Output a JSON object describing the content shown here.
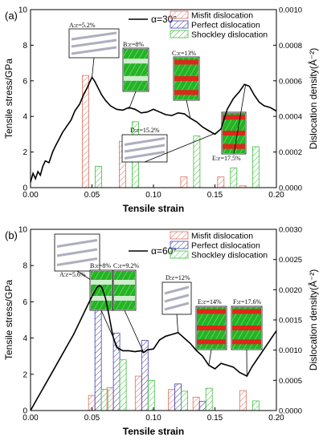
{
  "chart_data": [
    {
      "panel_label": "(a)",
      "type": "bar+line",
      "xlabel": "Tensile strain",
      "ylabel_left": "Tensile stress/GPa",
      "ylabel_right": "Dislocation density(Å⁻²)",
      "xlim": [
        0.0,
        0.2
      ],
      "ylim_left": [
        0,
        10
      ],
      "ylim_right": [
        0,
        0.001
      ],
      "x_ticks": [
        "0.00",
        "0.05",
        "0.10",
        "0.15",
        "0.20"
      ],
      "y_left_ticks": [
        "0",
        "2",
        "4",
        "6",
        "8",
        "10"
      ],
      "y_right_ticks": [
        "0.0000",
        "0.0002",
        "0.0004",
        "0.0006",
        "0.0008",
        "0.0010"
      ],
      "line_label": "α=30°",
      "stress_curve": {
        "x": [
          0,
          0.002,
          0.004,
          0.006,
          0.008,
          0.01,
          0.012,
          0.015,
          0.018,
          0.02,
          0.023,
          0.026,
          0.03,
          0.033,
          0.036,
          0.04,
          0.043,
          0.046,
          0.048,
          0.05,
          0.052,
          0.055,
          0.058,
          0.061,
          0.065,
          0.07,
          0.075,
          0.08,
          0.085,
          0.09,
          0.095,
          0.1,
          0.105,
          0.11,
          0.115,
          0.12,
          0.125,
          0.13,
          0.135,
          0.14,
          0.145,
          0.15,
          0.155,
          0.16,
          0.165,
          0.17,
          0.174,
          0.178,
          0.182,
          0.186,
          0.19,
          0.195,
          0.2
        ],
        "y": [
          0.3,
          0.8,
          0.5,
          0.9,
          0.7,
          1.2,
          1.5,
          1.4,
          2.0,
          2.3,
          2.7,
          3.1,
          3.5,
          3.8,
          4.3,
          4.7,
          5.2,
          5.6,
          5.9,
          6.2,
          6.0,
          5.6,
          5.2,
          4.9,
          4.6,
          4.4,
          4.35,
          4.5,
          4.4,
          4.2,
          4.25,
          4.4,
          4.25,
          4.1,
          4.05,
          4.2,
          4.15,
          3.9,
          3.7,
          3.4,
          3.2,
          3.0,
          3.3,
          4.4,
          5.0,
          5.4,
          5.8,
          5.7,
          5.2,
          4.8,
          4.6,
          4.5,
          4.3
        ]
      },
      "bar_groups": [
        {
          "x": 0.05,
          "values": [
            0.00063,
            0.0,
            0.00012
          ]
        },
        {
          "x": 0.08,
          "values": [
            0.00026,
            0.0,
            0.00037
          ]
        },
        {
          "x": 0.13,
          "values": [
            6e-05,
            0.0,
            0.00029
          ]
        },
        {
          "x": 0.16,
          "values": [
            6e-05,
            0.0,
            0.00011
          ]
        },
        {
          "x": 0.178,
          "values": [
            1e-05,
            0.0,
            0.00023
          ]
        }
      ],
      "legend": {
        "placement": "top-right",
        "entries": [
          "Misfit dislocation",
          "Perfect dislocation",
          "Shockley dislocation"
        ]
      },
      "annotations": [
        {
          "text": "A:ε=5.2%",
          "x": 0.05,
          "y": 6.2
        },
        {
          "text": "B:ε=8%",
          "x": 0.08,
          "y": 4.4
        },
        {
          "text": "C:ε=13%",
          "x": 0.13,
          "y": 3.9
        },
        {
          "text": "D:ε=15.2%",
          "x": 0.152,
          "y": 3.1
        },
        {
          "text": "E:ε=17.5%",
          "x": 0.175,
          "y": 5.8
        }
      ]
    },
    {
      "panel_label": "(b)",
      "type": "bar+line",
      "xlabel": "Tensile strain",
      "ylabel_left": "Tensile stress/GPa",
      "ylabel_right": "Dislocation density(Å⁻²)",
      "xlim": [
        0.0,
        0.2
      ],
      "ylim_left": [
        0,
        10
      ],
      "ylim_right": [
        0,
        0.003
      ],
      "x_ticks": [
        "0.00",
        "0.05",
        "0.10",
        "0.15",
        "0.20"
      ],
      "y_left_ticks": [
        "0",
        "2",
        "4",
        "6",
        "8",
        "10"
      ],
      "y_right_ticks": [
        "0.0000",
        "0.0005",
        "0.0010",
        "0.0015",
        "0.0020",
        "0.0025",
        "0.0030"
      ],
      "line_label": "α=60°",
      "stress_curve": {
        "x": [
          0,
          0.005,
          0.01,
          0.015,
          0.02,
          0.025,
          0.03,
          0.035,
          0.04,
          0.045,
          0.05,
          0.054,
          0.056,
          0.058,
          0.061,
          0.064,
          0.067,
          0.07,
          0.075,
          0.08,
          0.085,
          0.09,
          0.092,
          0.095,
          0.1,
          0.105,
          0.11,
          0.115,
          0.12,
          0.125,
          0.13,
          0.135,
          0.14,
          0.145,
          0.15,
          0.155,
          0.16,
          0.165,
          0.17,
          0.176,
          0.18,
          0.185,
          0.19,
          0.195,
          0.2
        ],
        "y": [
          0.0,
          0.6,
          1.2,
          1.8,
          2.4,
          3.0,
          3.6,
          4.2,
          4.9,
          5.6,
          6.3,
          6.8,
          6.9,
          6.8,
          6.2,
          5.2,
          4.1,
          3.5,
          3.3,
          3.3,
          3.25,
          3.3,
          3.2,
          3.35,
          3.4,
          3.9,
          4.1,
          4.2,
          4.3,
          4.0,
          3.7,
          3.3,
          3.0,
          2.5,
          2.3,
          2.6,
          2.5,
          2.4,
          2.1,
          1.9,
          2.4,
          2.9,
          3.4,
          3.9,
          4.4
        ]
      },
      "bar_groups": [
        {
          "x": 0.055,
          "values": [
            0.00025,
            0.0021,
            0.00035
          ]
        },
        {
          "x": 0.07,
          "values": [
            0.00038,
            0.00128,
            0.00084
          ]
        },
        {
          "x": 0.093,
          "values": [
            0.00057,
            0.00116,
            0.0005
          ]
        },
        {
          "x": 0.12,
          "values": [
            0.00035,
            0.00044,
            0.00032
          ]
        },
        {
          "x": 0.14,
          "values": [
            0.00022,
            0.00015,
            0.00037
          ]
        },
        {
          "x": 0.178,
          "values": [
            0.00033,
            0.0,
            0.00016
          ]
        }
      ],
      "legend": {
        "placement": "top-right",
        "entries": [
          "Misfit dislocation",
          "Perfect dislocation",
          "Shockley dislocation"
        ]
      },
      "annotations": [
        {
          "text": "A:ε=5.6%",
          "x": 0.056,
          "y": 6.9
        },
        {
          "text": "B:ε=8%",
          "x": 0.072,
          "y": 3.3
        },
        {
          "text": "C:ε=9.2%",
          "x": 0.092,
          "y": 3.2
        },
        {
          "text": "D:ε=12%",
          "x": 0.12,
          "y": 4.3
        },
        {
          "text": "E:ε=14%",
          "x": 0.145,
          "y": 2.5
        },
        {
          "text": "F:ε=17.6%",
          "x": 0.176,
          "y": 1.9
        }
      ]
    }
  ],
  "colors": {
    "misfit": "#d9705f",
    "perfect": "#3f3fa8",
    "shockley": "#3fbf3f",
    "curve": "#000000",
    "snapshot_red": "#e8201a",
    "snapshot_green": "#24b324"
  }
}
